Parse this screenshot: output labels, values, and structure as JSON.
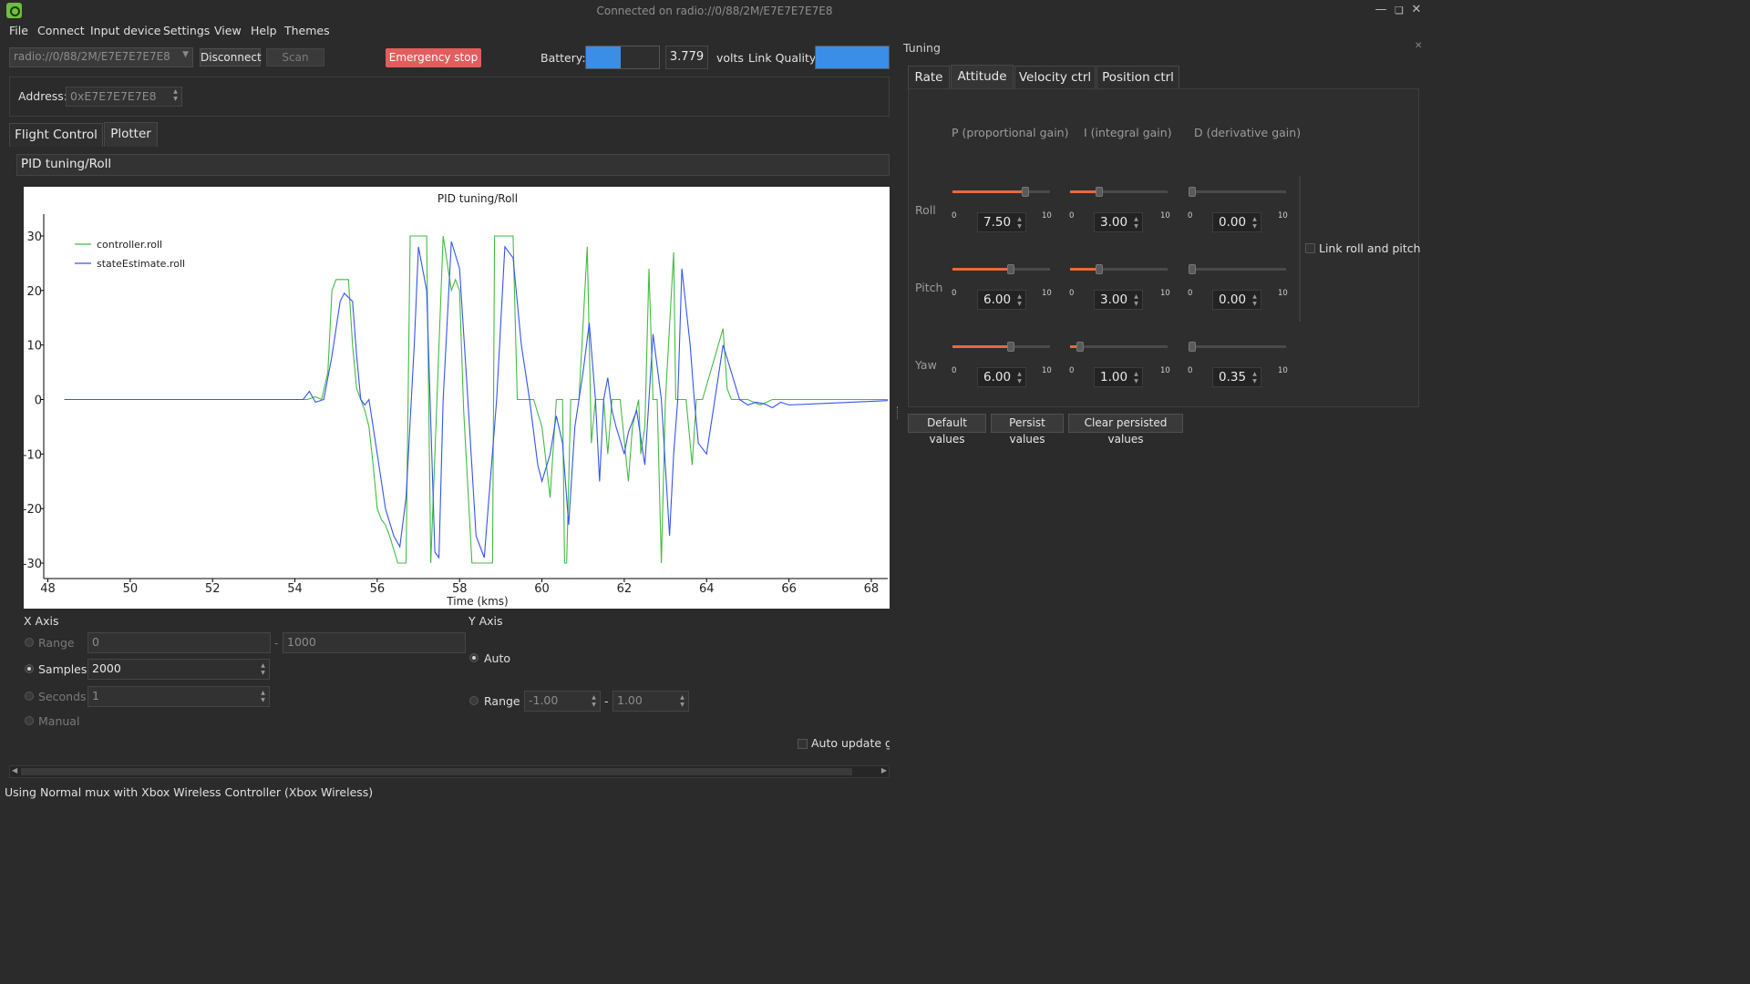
{
  "window": {
    "title": "Connected on radio://0/88/2M/E7E7E7E7E8",
    "controls": [
      "minimize",
      "restore",
      "close"
    ]
  },
  "menu": [
    "File",
    "Connect",
    "Input device",
    "Settings",
    "View",
    "Help",
    "Themes"
  ],
  "toolbar": {
    "uri": "radio://0/88/2M/E7E7E7E7E8",
    "disconnect_label": "Disconnect",
    "scan_label": "Scan",
    "emergency_label": "Emergency stop",
    "battery_label": "Battery:",
    "battery_level": 0.48,
    "battery_value": "3.779",
    "volts_label": "volts",
    "link_label": "Link Quality:",
    "link_level": 1.0
  },
  "address": {
    "label": "Address:",
    "value": "0xE7E7E7E7E8"
  },
  "tabs": [
    {
      "label": "Flight Control",
      "selected": false
    },
    {
      "label": "Plotter",
      "selected": true
    }
  ],
  "plotter": {
    "config": "PID tuning/Roll",
    "x_axis": {
      "title": "X Axis",
      "range_label": "Range",
      "range_from": "0",
      "range_sep": "-",
      "range_to": "1000",
      "samples_label": "Samples",
      "samples_value": "2000",
      "seconds_label": "Seconds",
      "seconds_value": "1",
      "manual_label": "Manual"
    },
    "y_axis": {
      "title": "Y Axis",
      "auto_label": "Auto",
      "range_label": "Range",
      "range_from": "-1.00",
      "range_sep": "-",
      "range_to": "1.00"
    },
    "auto_update_label": "Auto update gra"
  },
  "chart_data": {
    "type": "line",
    "title": "PID tuning/Roll",
    "xlabel": "Time (kms)",
    "ylabel": "",
    "xlim": [
      47.9,
      68.4
    ],
    "ylim": [
      -32,
      32
    ],
    "xticks": [
      "48",
      "50",
      "52",
      "54",
      "56",
      "58",
      "60",
      "62",
      "64",
      "66",
      "68"
    ],
    "xtick_values": [
      48,
      50,
      52,
      54,
      56,
      58,
      60,
      62,
      64,
      66,
      68
    ],
    "yticks": [
      "30",
      "20",
      "10",
      "0",
      "-10",
      "-20",
      "-30"
    ],
    "ytick_values": [
      30,
      20,
      10,
      0,
      -10,
      -20,
      -30
    ],
    "legend_position": "top-left",
    "grid": false,
    "series": [
      {
        "name": "controller.roll",
        "color": "#44bb44",
        "points": [
          [
            48.4,
            0
          ],
          [
            54.3,
            0
          ],
          [
            54.5,
            0.5
          ],
          [
            54.65,
            0
          ],
          [
            54.8,
            5
          ],
          [
            54.9,
            20
          ],
          [
            55.0,
            22
          ],
          [
            55.3,
            22
          ],
          [
            55.4,
            10
          ],
          [
            55.5,
            2
          ],
          [
            55.6,
            0
          ],
          [
            55.7,
            -2
          ],
          [
            55.8,
            -5
          ],
          [
            55.9,
            -12
          ],
          [
            56.0,
            -20
          ],
          [
            56.1,
            -22
          ],
          [
            56.2,
            -23
          ],
          [
            56.3,
            -25
          ],
          [
            56.5,
            -30
          ],
          [
            56.7,
            -30
          ],
          [
            56.8,
            30
          ],
          [
            57.2,
            30
          ],
          [
            57.3,
            -30
          ],
          [
            57.6,
            30
          ],
          [
            57.8,
            20
          ],
          [
            57.9,
            22
          ],
          [
            58.0,
            20
          ],
          [
            58.1,
            -2
          ],
          [
            58.3,
            -30
          ],
          [
            58.8,
            -30
          ],
          [
            58.85,
            30
          ],
          [
            59.3,
            30
          ],
          [
            59.4,
            0
          ],
          [
            59.8,
            0
          ],
          [
            60.0,
            -5
          ],
          [
            60.2,
            -18
          ],
          [
            60.35,
            0
          ],
          [
            60.5,
            0
          ],
          [
            60.55,
            -30
          ],
          [
            60.6,
            -30
          ],
          [
            60.7,
            0
          ],
          [
            60.9,
            0
          ],
          [
            61.1,
            28
          ],
          [
            61.2,
            -8
          ],
          [
            61.3,
            0
          ],
          [
            61.5,
            0
          ],
          [
            61.6,
            -10
          ],
          [
            61.7,
            0
          ],
          [
            61.9,
            0
          ],
          [
            62.1,
            -15
          ],
          [
            62.2,
            -5
          ],
          [
            62.35,
            0
          ],
          [
            62.4,
            -10
          ],
          [
            62.5,
            -5
          ],
          [
            62.6,
            24
          ],
          [
            62.7,
            0
          ],
          [
            62.8,
            0
          ],
          [
            62.9,
            -30
          ],
          [
            63.0,
            0
          ],
          [
            63.2,
            27
          ],
          [
            63.25,
            0
          ],
          [
            63.5,
            0
          ],
          [
            63.65,
            -12
          ],
          [
            63.75,
            0
          ],
          [
            63.9,
            0
          ],
          [
            64.4,
            13
          ],
          [
            64.5,
            2
          ],
          [
            64.6,
            0
          ],
          [
            65.0,
            0
          ],
          [
            65.3,
            -1
          ],
          [
            65.6,
            0
          ],
          [
            68.4,
            0
          ]
        ]
      },
      {
        "name": "stateEstimate.roll",
        "color": "#3355ee",
        "points": [
          [
            48.4,
            0
          ],
          [
            54.2,
            0
          ],
          [
            54.35,
            1.5
          ],
          [
            54.5,
            -0.5
          ],
          [
            54.7,
            0
          ],
          [
            54.9,
            8
          ],
          [
            55.1,
            18
          ],
          [
            55.2,
            19.5
          ],
          [
            55.4,
            18
          ],
          [
            55.5,
            8
          ],
          [
            55.6,
            0
          ],
          [
            55.7,
            -1
          ],
          [
            55.8,
            0
          ],
          [
            56.0,
            -10
          ],
          [
            56.2,
            -20
          ],
          [
            56.4,
            -25
          ],
          [
            56.55,
            -27
          ],
          [
            56.7,
            -18
          ],
          [
            56.9,
            10
          ],
          [
            57.0,
            28
          ],
          [
            57.2,
            20
          ],
          [
            57.4,
            -28
          ],
          [
            57.5,
            -29
          ],
          [
            57.6,
            0
          ],
          [
            57.8,
            29
          ],
          [
            58.0,
            24
          ],
          [
            58.2,
            0
          ],
          [
            58.4,
            -25
          ],
          [
            58.6,
            -29
          ],
          [
            58.9,
            0
          ],
          [
            59.1,
            28
          ],
          [
            59.3,
            26
          ],
          [
            59.5,
            10
          ],
          [
            59.7,
            0
          ],
          [
            59.9,
            -12
          ],
          [
            60.0,
            -15
          ],
          [
            60.2,
            -10
          ],
          [
            60.35,
            -3
          ],
          [
            60.5,
            -8
          ],
          [
            60.65,
            -23
          ],
          [
            60.8,
            -5
          ],
          [
            61.0,
            5
          ],
          [
            61.15,
            14
          ],
          [
            61.3,
            0
          ],
          [
            61.4,
            -15
          ],
          [
            61.5,
            0
          ],
          [
            61.6,
            4
          ],
          [
            61.7,
            -2
          ],
          [
            61.8,
            -5
          ],
          [
            62.0,
            -10
          ],
          [
            62.1,
            -6
          ],
          [
            62.3,
            -2
          ],
          [
            62.5,
            -12
          ],
          [
            62.7,
            12
          ],
          [
            62.9,
            0
          ],
          [
            63.1,
            -25
          ],
          [
            63.2,
            -10
          ],
          [
            63.3,
            0
          ],
          [
            63.4,
            24
          ],
          [
            63.6,
            10
          ],
          [
            63.7,
            0
          ],
          [
            63.8,
            -8
          ],
          [
            64.0,
            -10
          ],
          [
            64.2,
            0
          ],
          [
            64.4,
            10
          ],
          [
            64.6,
            5
          ],
          [
            64.8,
            0
          ],
          [
            65.0,
            -1
          ],
          [
            65.2,
            -0.5
          ],
          [
            65.4,
            -0.8
          ],
          [
            65.6,
            -1.5
          ],
          [
            65.8,
            -0.5
          ],
          [
            66.0,
            -1.0
          ],
          [
            68.4,
            -0.2
          ]
        ]
      }
    ]
  },
  "tuning": {
    "title": "Tuning",
    "tabs": [
      {
        "label": "Rate",
        "selected": false
      },
      {
        "label": "Attitude",
        "selected": true
      },
      {
        "label": "Velocity ctrl",
        "selected": false
      },
      {
        "label": "Position ctrl",
        "selected": false
      }
    ],
    "headers": [
      "P (proportional gain)",
      "I (integral gain)",
      "D (derivative gain)"
    ],
    "min_label": "0",
    "max_label": "10",
    "rows": [
      {
        "label": "Roll",
        "p": "7.50",
        "i": "3.00",
        "d": "0.00",
        "pv": 0.75,
        "iv": 0.3,
        "dv": 0.0
      },
      {
        "label": "Pitch",
        "p": "6.00",
        "i": "3.00",
        "d": "0.00",
        "pv": 0.6,
        "iv": 0.3,
        "dv": 0.0
      },
      {
        "label": "Yaw",
        "p": "6.00",
        "i": "1.00",
        "d": "0.35",
        "pv": 0.6,
        "iv": 0.1,
        "dv": 0.035
      }
    ],
    "link_label": "Link roll and pitch",
    "default_label": "Default values",
    "persist_label": "Persist values",
    "clear_label": "Clear persisted values"
  },
  "status": "Using Normal mux with Xbox Wireless Controller (Xbox Wireless)"
}
